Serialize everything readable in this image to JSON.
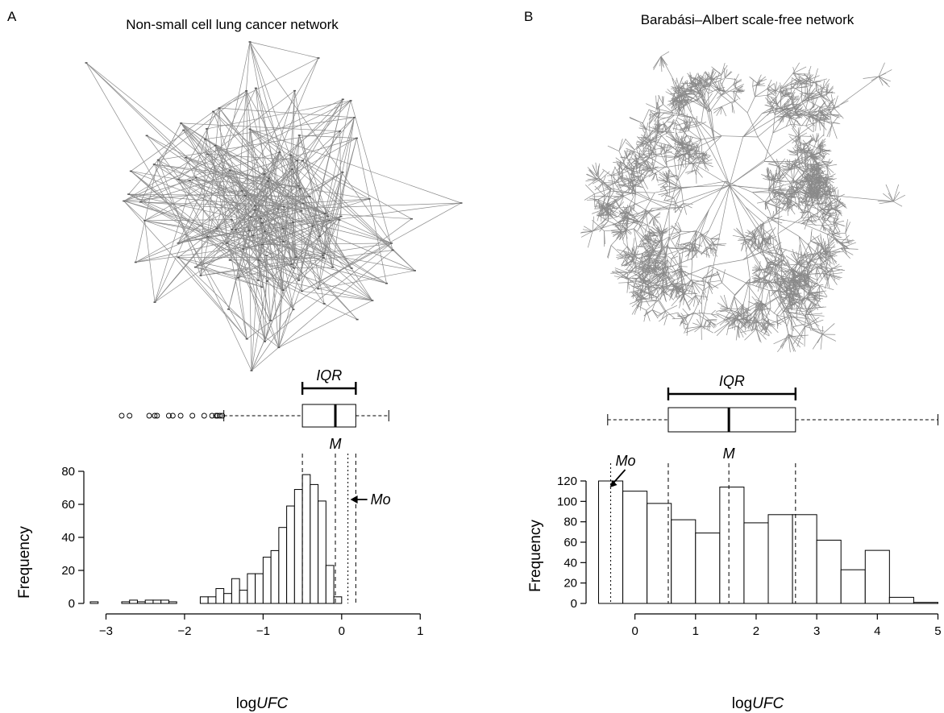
{
  "chart_data": [
    {
      "panel": "A",
      "title": "Non-small cell lung cancer network",
      "type": "bar",
      "xlabel_pre": "log",
      "xlabel_var": "UFC",
      "ylabel": "Frequency",
      "xlim": [
        -3.2,
        1.1
      ],
      "ylim": [
        0,
        80
      ],
      "xticks": [
        -3,
        -2,
        -1,
        0,
        1
      ],
      "yticks": [
        0,
        20,
        40,
        60,
        80
      ],
      "bin_start": -3.2,
      "bin_width": 0.1,
      "values": [
        1,
        0,
        0,
        0,
        1,
        2,
        1,
        2,
        2,
        2,
        1,
        0,
        0,
        0,
        4,
        4,
        9,
        6,
        15,
        8,
        18,
        18,
        28,
        32,
        46,
        59,
        69,
        78,
        72,
        62,
        23,
        4
      ],
      "boxplot": {
        "whisker_low": -1.5,
        "q1": -0.5,
        "median": -0.08,
        "q3": 0.18,
        "whisker_high": 0.6,
        "outliers": [
          -2.8,
          -2.7,
          -2.45,
          -2.38,
          -2.35,
          -2.2,
          -2.15,
          -2.05,
          -1.9,
          -1.75,
          -1.65,
          -1.6,
          -1.58,
          -1.55,
          -1.52
        ]
      },
      "vlines": [
        {
          "x": -0.5,
          "style": "dashed"
        },
        {
          "x": -0.08,
          "style": "dashed"
        },
        {
          "x": 0.08,
          "style": "dotted"
        },
        {
          "x": 0.18,
          "style": "dashed"
        }
      ],
      "annotations": {
        "iqr": "IQR",
        "median": {
          "label": "M",
          "x": -0.08
        },
        "mode": {
          "label": "Mo",
          "x": 0.08
        }
      }
    },
    {
      "panel": "B",
      "title": "Barabási–Albert scale-free network",
      "type": "bar",
      "xlabel_pre": "log",
      "xlabel_var": "UFC",
      "ylabel": "Frequency",
      "xlim": [
        -0.7,
        5.1
      ],
      "ylim": [
        0,
        120
      ],
      "xticks": [
        0,
        1,
        2,
        3,
        4,
        5
      ],
      "yticks": [
        0,
        20,
        40,
        60,
        80,
        100,
        120
      ],
      "bin_start": -0.6,
      "bin_width": 0.4,
      "values": [
        120,
        110,
        98,
        82,
        69,
        114,
        79,
        87,
        87,
        62,
        33,
        52,
        6,
        1
      ],
      "boxplot": {
        "whisker_low": -0.45,
        "q1": 0.55,
        "median": 1.55,
        "q3": 2.65,
        "whisker_high": 5.0,
        "outliers": []
      },
      "vlines": [
        {
          "x": -0.4,
          "style": "dotted"
        },
        {
          "x": 0.55,
          "style": "dashed"
        },
        {
          "x": 1.55,
          "style": "dashed"
        },
        {
          "x": 2.65,
          "style": "dashed"
        }
      ],
      "annotations": {
        "iqr": "IQR",
        "median": {
          "label": "M",
          "x": 1.55
        },
        "mode": {
          "label": "Mo",
          "x": -0.4
        }
      }
    }
  ]
}
